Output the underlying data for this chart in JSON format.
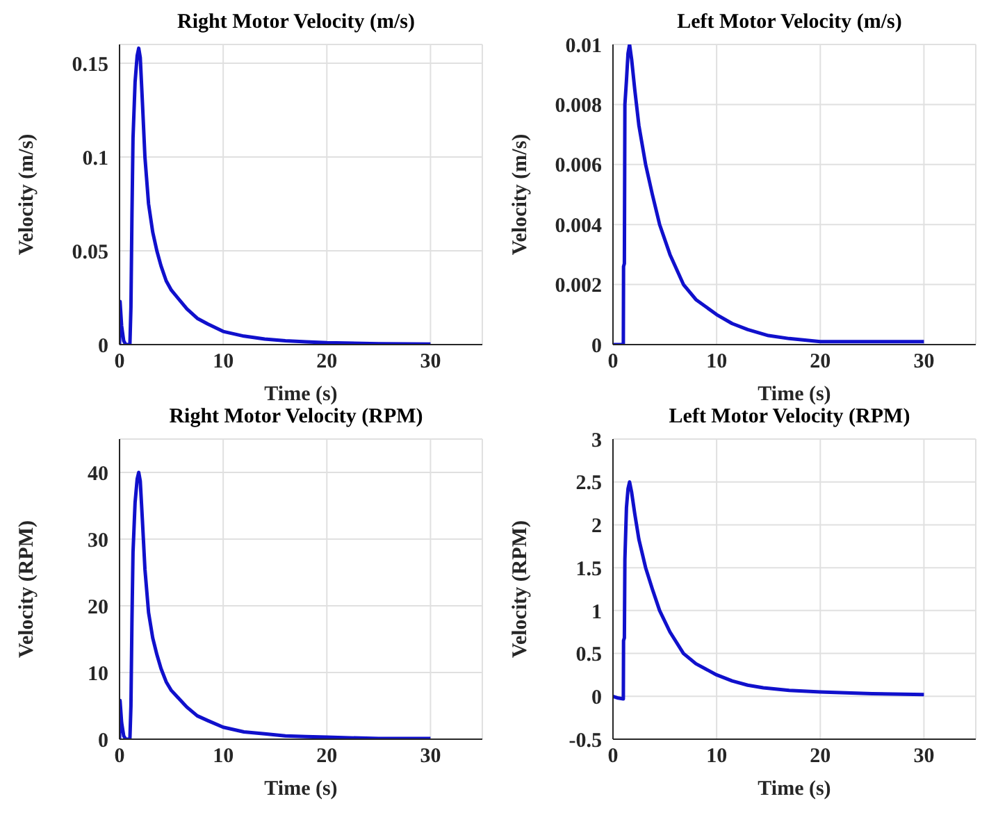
{
  "chart_data": [
    {
      "type": "line",
      "title": "Right Motor Velocity (m/s)",
      "xlabel": "Time (s)",
      "ylabel": "Velocity (m/s)",
      "xlim": [
        0,
        35
      ],
      "xticks": [
        0,
        10,
        20,
        30
      ],
      "ylim": [
        0,
        0.16
      ],
      "yticks": [
        0,
        0.05,
        0.1,
        0.15
      ],
      "grid": true,
      "legend": false,
      "marker": "none",
      "line_style": "solid",
      "series": [
        {
          "color": "#1010cc",
          "x": [
            0,
            0.05,
            0.2,
            0.4,
            0.6,
            1.0,
            1.1,
            1.2,
            1.3,
            1.5,
            1.7,
            1.85,
            2.0,
            2.2,
            2.45,
            2.8,
            3.2,
            3.6,
            4.0,
            4.5,
            5.0,
            5.6,
            6.5,
            7.5,
            8.5,
            10,
            12,
            14,
            16,
            18,
            20,
            25,
            30
          ],
          "values": [
            0,
            0.023,
            0.01,
            0.002,
            0,
            0,
            0.02,
            0.07,
            0.11,
            0.14,
            0.154,
            0.158,
            0.153,
            0.13,
            0.1,
            0.075,
            0.06,
            0.05,
            0.042,
            0.034,
            0.029,
            0.025,
            0.019,
            0.014,
            0.011,
            0.007,
            0.0045,
            0.003,
            0.002,
            0.0015,
            0.001,
            0.0005,
            0.0003
          ]
        }
      ]
    },
    {
      "type": "line",
      "title": "Left Motor Velocity (m/s)",
      "xlabel": "Time (s)",
      "ylabel": "Velocity (m/s)",
      "xlim": [
        0,
        35
      ],
      "xticks": [
        0,
        10,
        20,
        30
      ],
      "ylim": [
        0,
        0.01
      ],
      "yticks": [
        0,
        0.002,
        0.004,
        0.006,
        0.008,
        0.01
      ],
      "grid": true,
      "legend": false,
      "marker": "none",
      "line_style": "solid",
      "series": [
        {
          "color": "#1010cc",
          "x": [
            0,
            0.5,
            1.0,
            1.02,
            1.1,
            1.15,
            1.3,
            1.45,
            1.6,
            1.8,
            2.1,
            2.5,
            3.15,
            3.8,
            4.5,
            5.5,
            6.8,
            8.0,
            10,
            11.5,
            13,
            15,
            17,
            20,
            25,
            30
          ],
          "values": [
            0,
            0,
            0,
            0.0026,
            0.0027,
            0.008,
            0.0088,
            0.0097,
            0.01,
            0.0095,
            0.0085,
            0.0073,
            0.006,
            0.005,
            0.004,
            0.003,
            0.002,
            0.0015,
            0.001,
            0.0007,
            0.0005,
            0.0003,
            0.0002,
            0.0001,
            0.0001,
            0.0001
          ]
        }
      ]
    },
    {
      "type": "line",
      "title": "Right Motor Velocity (RPM)",
      "xlabel": "Time (s)",
      "ylabel": "Velocity (RPM)",
      "xlim": [
        0,
        35
      ],
      "xticks": [
        0,
        10,
        20,
        30
      ],
      "ylim": [
        0,
        45
      ],
      "yticks": [
        0,
        10,
        20,
        30,
        40
      ],
      "grid": true,
      "legend": false,
      "marker": "none",
      "line_style": "solid",
      "series": [
        {
          "color": "#1010cc",
          "x": [
            0,
            0.05,
            0.2,
            0.4,
            0.6,
            1.0,
            1.1,
            1.2,
            1.3,
            1.5,
            1.7,
            1.85,
            2.0,
            2.2,
            2.45,
            2.8,
            3.2,
            3.6,
            4.0,
            4.5,
            5.0,
            5.6,
            6.5,
            7.5,
            8.5,
            10,
            12,
            14,
            16,
            18,
            20,
            25,
            30
          ],
          "values": [
            0,
            5.8,
            2.5,
            0.5,
            0,
            0,
            5,
            18,
            28,
            35.5,
            39,
            40,
            38.7,
            33,
            25.5,
            19,
            15.2,
            12.7,
            10.6,
            8.6,
            7.3,
            6.3,
            4.8,
            3.5,
            2.8,
            1.8,
            1.1,
            0.8,
            0.5,
            0.4,
            0.3,
            0.1,
            0.1
          ]
        }
      ]
    },
    {
      "type": "line",
      "title": "Left Motor Velocity (RPM)",
      "xlabel": "Time (s)",
      "ylabel": "Velocity (RPM)",
      "xlim": [
        0,
        35
      ],
      "xticks": [
        0,
        10,
        20,
        30
      ],
      "ylim": [
        -0.5,
        3
      ],
      "yticks": [
        -0.5,
        0,
        0.5,
        1,
        1.5,
        2,
        2.5,
        3
      ],
      "grid": true,
      "legend": false,
      "marker": "none",
      "line_style": "solid",
      "series": [
        {
          "color": "#1010cc",
          "x": [
            0,
            0.5,
            1.0,
            1.02,
            1.1,
            1.15,
            1.3,
            1.45,
            1.6,
            1.8,
            2.1,
            2.5,
            3.15,
            3.8,
            4.5,
            5.5,
            6.8,
            8.0,
            10,
            11.5,
            13,
            14.5,
            17,
            20,
            25,
            30
          ],
          "values": [
            0,
            -0.02,
            -0.03,
            0.65,
            0.68,
            1.6,
            2.2,
            2.42,
            2.5,
            2.38,
            2.13,
            1.83,
            1.5,
            1.25,
            1.0,
            0.75,
            0.5,
            0.38,
            0.25,
            0.18,
            0.13,
            0.1,
            0.07,
            0.05,
            0.03,
            0.02
          ]
        }
      ]
    }
  ]
}
